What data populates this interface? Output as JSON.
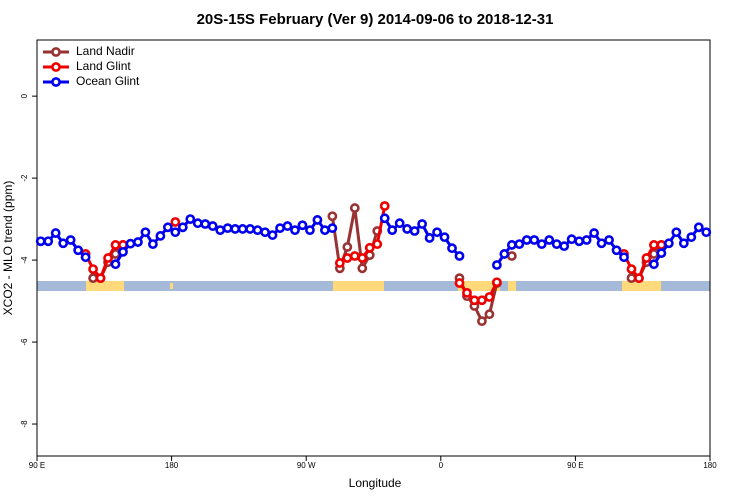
{
  "chart_data": {
    "type": "line",
    "title": "20S-15S February (Ver 9)   2014-09-06 to 2018-12-31",
    "x_label": "Longitude",
    "y_label": "XCO2 - MLO trend (ppm)",
    "x": [
      92.5,
      97.5,
      102.5,
      107.5,
      112.5,
      117.5,
      122.5,
      127.5,
      132.5,
      137.5,
      142.5,
      147.5,
      152.5,
      157.5,
      162.5,
      167.5,
      172.5,
      177.5,
      182.5,
      187.5,
      192.5,
      197.5,
      202.5,
      207.5,
      212.5,
      217.5,
      222.5,
      227.5,
      232.5,
      237.5,
      242.5,
      247.5,
      252.5,
      257.5,
      262.5,
      267.5,
      272.5,
      277.5,
      282.5,
      287.5,
      292.5,
      297.5,
      302.5,
      307.5,
      312.5,
      317.5,
      322.5,
      327.5,
      332.5,
      337.5,
      342.5,
      347.5,
      352.5,
      357.5,
      362.5,
      367.5,
      372.5,
      377.5,
      382.5,
      387.5,
      392.5,
      397.5,
      402.5,
      407.5,
      412.5,
      417.5,
      422.5,
      427.5,
      432.5,
      437.5,
      442.5,
      447.5,
      452.5,
      457.5,
      462.5,
      467.5,
      472.5,
      477.5,
      482.5,
      487.5,
      492.5,
      497.5,
      502.5,
      507.5,
      512.5,
      517.5,
      522.5,
      527.5,
      532.5,
      537.5
    ],
    "series": [
      {
        "name": "Land Nadir",
        "color": "#993333",
        "values": [
          null,
          null,
          null,
          null,
          null,
          null,
          null,
          -4.44,
          -4.44,
          -4.05,
          -3.85,
          -3.63,
          null,
          null,
          null,
          null,
          null,
          null,
          null,
          null,
          null,
          null,
          null,
          null,
          null,
          null,
          null,
          null,
          null,
          null,
          null,
          null,
          null,
          null,
          null,
          null,
          null,
          null,
          null,
          -2.93,
          -4.2,
          -3.68,
          -2.73,
          -4.2,
          -3.88,
          -3.29,
          null,
          null,
          null,
          null,
          null,
          null,
          null,
          null,
          null,
          null,
          -4.44,
          -4.88,
          -5.12,
          -5.49,
          -5.32,
          -4.56,
          null,
          -3.9,
          null,
          null,
          null,
          null,
          null,
          null,
          null,
          null,
          null,
          null,
          null,
          null,
          null,
          null,
          null,
          -4.44,
          -4.44,
          -4.05,
          -3.85,
          -3.63,
          null,
          null,
          null,
          null,
          null,
          null
        ]
      },
      {
        "name": "Land Glint",
        "color": "#ee0000",
        "values": [
          null,
          null,
          null,
          null,
          null,
          null,
          -3.85,
          -4.22,
          -4.44,
          -3.95,
          -3.63,
          -3.63,
          null,
          null,
          null,
          null,
          null,
          null,
          -3.07,
          null,
          null,
          null,
          null,
          null,
          null,
          null,
          null,
          null,
          null,
          null,
          null,
          null,
          null,
          null,
          null,
          null,
          null,
          null,
          null,
          null,
          -4.07,
          -3.95,
          -3.9,
          -3.95,
          -3.7,
          -3.61,
          -2.68,
          null,
          null,
          null,
          null,
          null,
          null,
          null,
          null,
          null,
          -4.56,
          -4.8,
          -4.98,
          -4.98,
          -4.9,
          -4.54,
          null,
          null,
          null,
          null,
          null,
          null,
          null,
          null,
          null,
          null,
          null,
          null,
          null,
          null,
          null,
          null,
          -3.85,
          -4.22,
          -4.44,
          -3.95,
          -3.63,
          -3.63,
          null,
          null,
          null,
          null,
          null,
          null
        ]
      },
      {
        "name": "Ocean Glint",
        "color": "#0000ee",
        "values": [
          -3.54,
          -3.54,
          -3.34,
          -3.59,
          -3.51,
          -3.76,
          -3.93,
          null,
          null,
          null,
          -4.1,
          -3.8,
          -3.6,
          -3.56,
          -3.32,
          -3.61,
          -3.41,
          -3.2,
          -3.32,
          -3.2,
          -3.0,
          -3.1,
          -3.12,
          -3.17,
          -3.27,
          -3.22,
          -3.24,
          -3.24,
          -3.24,
          -3.27,
          -3.32,
          -3.39,
          -3.22,
          -3.17,
          -3.27,
          -3.15,
          -3.27,
          -3.02,
          -3.27,
          -3.22,
          null,
          null,
          null,
          null,
          null,
          null,
          -2.98,
          -3.27,
          -3.1,
          -3.24,
          -3.29,
          -3.12,
          -3.46,
          -3.32,
          -3.44,
          -3.71,
          -3.9,
          null,
          null,
          null,
          null,
          -4.12,
          -3.85,
          -3.63,
          -3.61,
          -3.51,
          -3.51,
          -3.61,
          -3.51,
          -3.61,
          -3.66,
          -3.49,
          -3.54,
          -3.51,
          -3.34,
          -3.59,
          -3.51,
          -3.76,
          -3.93,
          null,
          null,
          null,
          -4.1,
          -3.83,
          -3.59,
          -3.32,
          -3.59,
          -3.44,
          -3.2,
          -3.32
        ]
      }
    ],
    "xlim": [
      90,
      540
    ],
    "xticks": [
      {
        "value": 90,
        "label": "90 E"
      },
      180,
      {
        "value": 270,
        "label": "90 W"
      },
      {
        "value": 360,
        "label": "0"
      },
      {
        "value": 450,
        "label": "90 E"
      },
      {
        "value": 540,
        "label": "180"
      }
    ],
    "ylim": [
      -8.78,
      1.37
    ],
    "yticks": [
      0,
      -2,
      -4,
      -6,
      -8
    ],
    "legend": "top-left"
  }
}
